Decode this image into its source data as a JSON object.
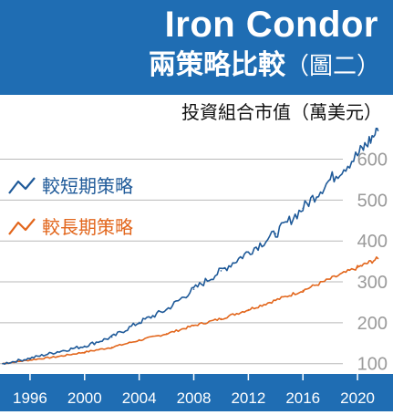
{
  "header": {
    "title": "Iron Condor",
    "subtitle": "兩策略比較",
    "subtitle_note": "（圖二）"
  },
  "colors": {
    "header_bg": "#1f6db3",
    "axis_band": "#1f6db3",
    "short_series": "#1f5a99",
    "long_series": "#e2661c",
    "grid": "#b9b9b9",
    "ytick_text": "#9a9a9a"
  },
  "chart_data": {
    "type": "line",
    "title": "Iron Condor 兩策略比較（圖二）",
    "ylabel": "投資組合市值（萬美元）",
    "xlabel": "",
    "xlim": [
      1993.8,
      2022.6
    ],
    "ylim": [
      77,
      677
    ],
    "yticks": [
      100,
      200,
      300,
      400,
      500,
      600
    ],
    "xticks": [
      1996,
      2000,
      2004,
      2008,
      2012,
      2016,
      2020
    ],
    "grid": true,
    "legend_position": "top-left",
    "series": [
      {
        "name": "較短期策略",
        "color": "#1f5a99",
        "x": [
          1994,
          1996,
          1998,
          2000,
          2002,
          2004,
          2006,
          2008,
          2010,
          2012,
          2014,
          2016,
          2018,
          2020,
          2021.5
        ],
        "values": [
          100,
          113,
          129,
          143,
          165,
          201,
          232,
          282,
          327,
          373,
          418,
          480,
          550,
          610,
          670
        ]
      },
      {
        "name": "較長期策略",
        "color": "#e2661c",
        "x": [
          1994,
          1996,
          1998,
          2000,
          2002,
          2004,
          2006,
          2008,
          2010,
          2012,
          2014,
          2016,
          2018,
          2020,
          2021.5
        ],
        "values": [
          100,
          109,
          117,
          128,
          140,
          157,
          173,
          193,
          210,
          232,
          255,
          279,
          307,
          335,
          357
        ]
      }
    ]
  }
}
